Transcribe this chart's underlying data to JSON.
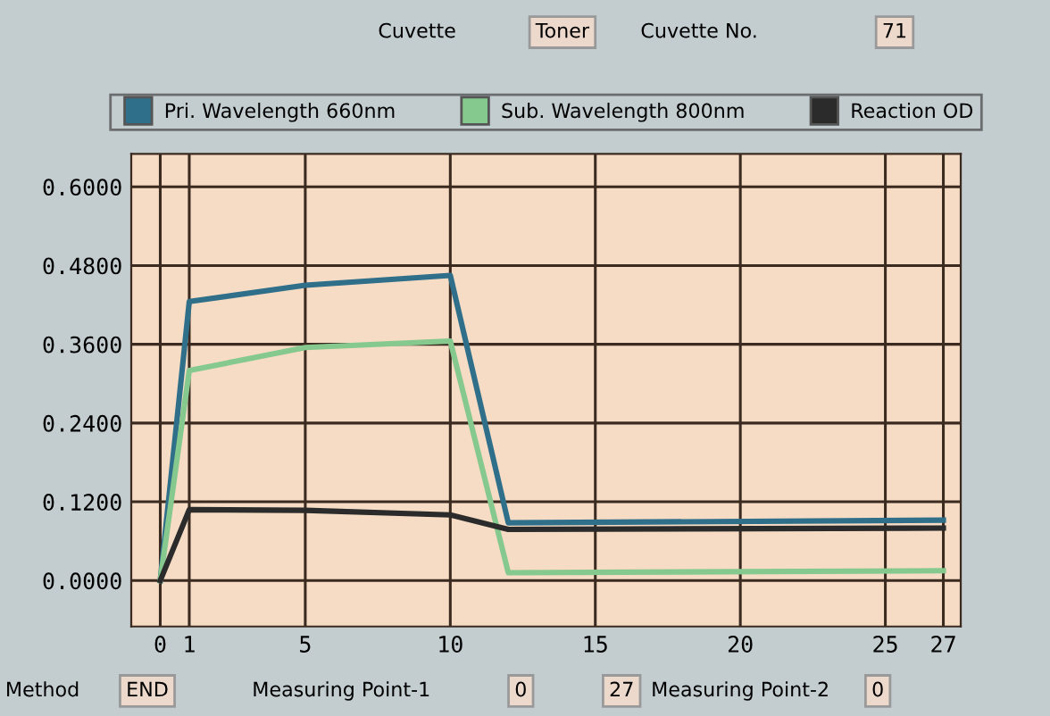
{
  "chart_data": {
    "type": "line",
    "x": [
      0,
      1,
      5,
      10,
      12,
      27
    ],
    "series": [
      {
        "name": "Pri. Wavelength 660nm",
        "color": "#2f6f8a",
        "values": [
          0,
          0.425,
          0.45,
          0.465,
          0.088,
          0.092
        ]
      },
      {
        "name": "Sub. Wavelength 800nm",
        "color": "#86c98f",
        "values": [
          0,
          0.32,
          0.355,
          0.365,
          0.012,
          0.015
        ]
      },
      {
        "name": "Reaction OD",
        "color": "#2b2b2b",
        "values": [
          0,
          0.108,
          0.107,
          0.1,
          0.078,
          0.08
        ]
      }
    ],
    "xlim": [
      -1,
      27.6
    ],
    "ylim": [
      -0.07,
      0.65
    ],
    "xticks": [
      0,
      1,
      5,
      10,
      15,
      20,
      25,
      27
    ],
    "yticks": [
      {
        "value": 0,
        "label": "0.0000"
      },
      {
        "value": 0.12,
        "label": "0.1200"
      },
      {
        "value": 0.24,
        "label": "0.2400"
      },
      {
        "value": 0.36,
        "label": "0.3600"
      },
      {
        "value": 0.48,
        "label": "0.4800"
      },
      {
        "value": 0.6,
        "label": "0.6000"
      }
    ],
    "grid": true,
    "legend": "top",
    "marker": "none",
    "line_style": "solid",
    "annotations": [
      "Cuvette",
      "Toner",
      "Cuvette No.",
      "71",
      "Method",
      "END",
      "Measuring Point-1",
      "0",
      "27",
      "Measuring Point-2",
      "0"
    ]
  }
}
